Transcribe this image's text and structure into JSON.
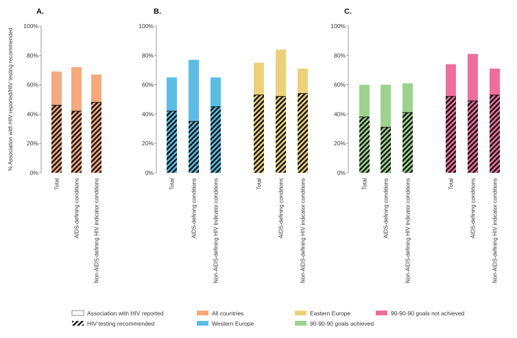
{
  "chart_data": {
    "type": "bar",
    "ylabel": "% Association with HIV reported/HIV testing recommended",
    "ylim": [
      0,
      100
    ],
    "yticks": [
      "0%",
      "20%",
      "40%",
      "60%",
      "80%",
      "100%"
    ],
    "grid": false,
    "legend_placement": "bottom",
    "panels": [
      {
        "label": "A.",
        "groups": [
          {
            "series": "All countries",
            "color": "#F5A97C",
            "categories": [
              "Total",
              "AIDS-defining conditions",
              "Non-AIDS-defining HIV indicator conditions"
            ],
            "reported": [
              69,
              72,
              67
            ],
            "recommended": [
              46,
              42,
              48
            ]
          }
        ]
      },
      {
        "label": "B.",
        "groups": [
          {
            "series": "Western Europe",
            "color": "#5BBDE4",
            "categories": [
              "Total",
              "AIDS-defining conditions",
              "Non-AIDS-defining HIV indicator conditions"
            ],
            "reported": [
              65,
              77,
              65
            ],
            "recommended": [
              42,
              35,
              45
            ]
          },
          {
            "series": "Eastern Europe",
            "color": "#EDD17A",
            "categories": [
              "Total",
              "AIDS-defining conditions",
              "Non-AIDS-defining HIV indicator conditions"
            ],
            "reported": [
              75,
              84,
              71
            ],
            "recommended": [
              53,
              52,
              54
            ]
          }
        ]
      },
      {
        "label": "C.",
        "groups": [
          {
            "series": "90-90-90 goals achieved",
            "color": "#9CD28E",
            "categories": [
              "Total",
              "AIDS-defining conditions",
              "Non-AIDS-defining HIV indicator conditions"
            ],
            "reported": [
              60,
              60,
              61
            ],
            "recommended": [
              38,
              31,
              41
            ]
          },
          {
            "series": "90-90-90 goals not achieved",
            "color": "#EE6F9C",
            "categories": [
              "Total",
              "AIDS-defining conditions",
              "Non-AIDS-defining HIV indicator conditions"
            ],
            "reported": [
              74,
              81,
              71
            ],
            "recommended": [
              52,
              49,
              53
            ]
          }
        ]
      }
    ],
    "legend": [
      {
        "label": "Association with HIV reported",
        "style": "outline"
      },
      {
        "label": "HIV testing recommended",
        "style": "hatch"
      },
      {
        "label": "All countries",
        "color": "#F5A97C"
      },
      {
        "label": "Western Europe",
        "color": "#5BBDE4"
      },
      {
        "label": "Eastern Europe",
        "color": "#EDD17A"
      },
      {
        "label": "90-90-90 goals achieved",
        "color": "#9CD28E"
      },
      {
        "label": "90-90-90 goals not achieved",
        "color": "#EE6F9C"
      }
    ]
  }
}
